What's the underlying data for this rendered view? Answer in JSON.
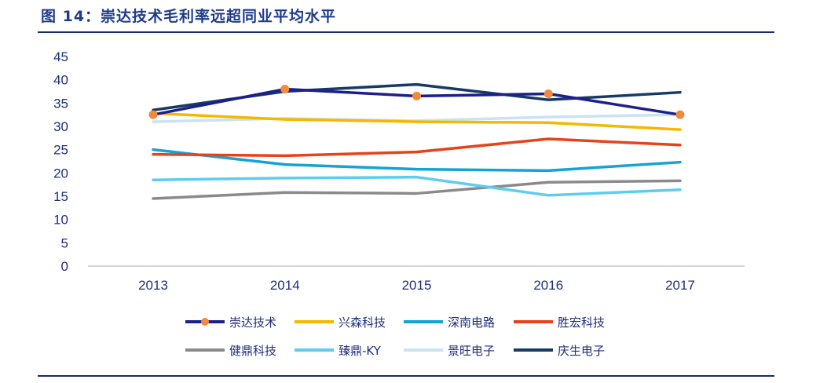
{
  "title": "图 14：崇达技术毛利率远超同业平均水平",
  "chart_data": {
    "type": "line",
    "title": "图 14：崇达技术毛利率远超同业平均水平",
    "xlabel": "",
    "ylabel": "",
    "categories": [
      "2013",
      "2014",
      "2015",
      "2016",
      "2017"
    ],
    "yticks": [
      0,
      5,
      10,
      15,
      20,
      25,
      30,
      35,
      40,
      45
    ],
    "ylim": [
      0,
      45
    ],
    "grid": false,
    "legend_position": "bottom",
    "series": [
      {
        "name": "崇达技术",
        "color": "#1c1f8c",
        "marker": "circle",
        "marker_color": "#f08a3c",
        "values": [
          32.5,
          38.0,
          36.5,
          37.0,
          32.5
        ]
      },
      {
        "name": "兴森科技",
        "color": "#f5b800",
        "values": [
          32.8,
          31.5,
          31.0,
          30.8,
          29.3
        ]
      },
      {
        "name": "深南电路",
        "color": "#13a3d4",
        "values": [
          25.0,
          21.8,
          20.8,
          20.5,
          22.3
        ]
      },
      {
        "name": "胜宏科技",
        "color": "#e8421a",
        "values": [
          24.0,
          23.7,
          24.5,
          27.3,
          26.0
        ]
      },
      {
        "name": "健鼎科技",
        "color": "#8a8a8a",
        "values": [
          14.5,
          15.8,
          15.6,
          18.0,
          18.3
        ]
      },
      {
        "name": "臻鼎-KY",
        "color": "#5ccdf0",
        "values": [
          18.5,
          18.9,
          19.1,
          15.2,
          16.4
        ]
      },
      {
        "name": "景旺电子",
        "color": "#c9e3f2",
        "values": [
          31.0,
          31.7,
          31.2,
          32.0,
          32.5
        ]
      },
      {
        "name": "庆生电子",
        "color": "#163a66",
        "values": [
          33.5,
          37.5,
          39.0,
          35.7,
          37.3
        ]
      }
    ]
  }
}
